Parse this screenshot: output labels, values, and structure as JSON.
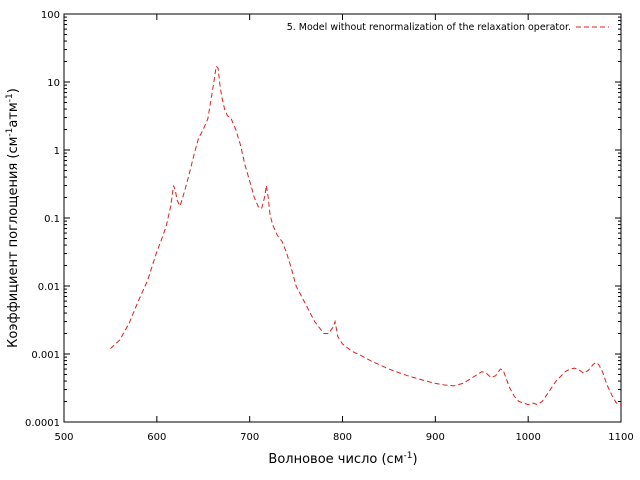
{
  "chart_data": {
    "type": "line",
    "title": "",
    "xlabel_main": "Волновое число (см",
    "xlabel_sup": "-1",
    "xlabel_tail": ")",
    "ylabel_main": "Коэффициент поглощения (см",
    "ylabel_sup1": "-1",
    "ylabel_mid": "атм",
    "ylabel_sup2": "-1",
    "ylabel_tail": ")",
    "xlim": [
      500,
      1100
    ],
    "ylim": [
      0.0001,
      100
    ],
    "yscale": "log",
    "grid": false,
    "legend_position": "top-right",
    "x_ticks": [
      500,
      600,
      700,
      800,
      900,
      1000,
      1100
    ],
    "y_ticks": [
      0.0001,
      0.001,
      0.01,
      0.1,
      1,
      10,
      100
    ],
    "y_tick_labels": [
      "0.0001",
      "0.001",
      "0.01",
      "0.1",
      "1",
      "10",
      "100"
    ],
    "series": [
      {
        "name": "5. Model without renormalization of the relaxation operator.",
        "color": "#e0201b",
        "style": "dashed",
        "x": [
          550,
          560,
          570,
          580,
          590,
          600,
          605,
          610,
          615,
          618,
          620,
          622,
          625,
          630,
          635,
          640,
          645,
          650,
          655,
          660,
          664,
          666,
          668,
          670,
          673,
          676,
          680,
          685,
          690,
          695,
          700,
          705,
          710,
          713,
          716,
          718,
          720,
          722,
          725,
          730,
          735,
          740,
          745,
          750,
          760,
          770,
          780,
          785,
          790,
          792,
          795,
          800,
          810,
          820,
          830,
          850,
          870,
          890,
          900,
          910,
          920,
          930,
          940,
          950,
          955,
          960,
          965,
          970,
          973,
          976,
          980,
          985,
          990,
          995,
          1000,
          1005,
          1010,
          1015,
          1020,
          1030,
          1040,
          1045,
          1050,
          1055,
          1060,
          1065,
          1070,
          1073,
          1076,
          1080,
          1085,
          1090,
          1095,
          1100
        ],
        "y": [
          0.0012,
          0.0016,
          0.0028,
          0.006,
          0.012,
          0.032,
          0.048,
          0.075,
          0.15,
          0.3,
          0.25,
          0.18,
          0.15,
          0.25,
          0.45,
          0.85,
          1.5,
          2.0,
          2.9,
          7.5,
          17,
          16,
          9,
          6,
          4,
          3.2,
          2.9,
          2.0,
          1.2,
          0.6,
          0.35,
          0.2,
          0.14,
          0.14,
          0.2,
          0.3,
          0.2,
          0.11,
          0.078,
          0.055,
          0.045,
          0.03,
          0.018,
          0.01,
          0.0055,
          0.003,
          0.002,
          0.002,
          0.0025,
          0.003,
          0.0018,
          0.0014,
          0.0011,
          0.00095,
          0.0008,
          0.0006,
          0.00048,
          0.0004,
          0.00037,
          0.00035,
          0.00034,
          0.00037,
          0.00045,
          0.00055,
          0.00052,
          0.00045,
          0.00048,
          0.0006,
          0.00058,
          0.00045,
          0.00032,
          0.00024,
          0.0002,
          0.00019,
          0.00018,
          0.00019,
          0.00018,
          0.0002,
          0.00025,
          0.0004,
          0.00055,
          0.0006,
          0.00062,
          0.00058,
          0.00052,
          0.00058,
          0.0007,
          0.00075,
          0.0007,
          0.00055,
          0.00035,
          0.00025,
          0.00019,
          0.00018
        ]
      }
    ]
  }
}
